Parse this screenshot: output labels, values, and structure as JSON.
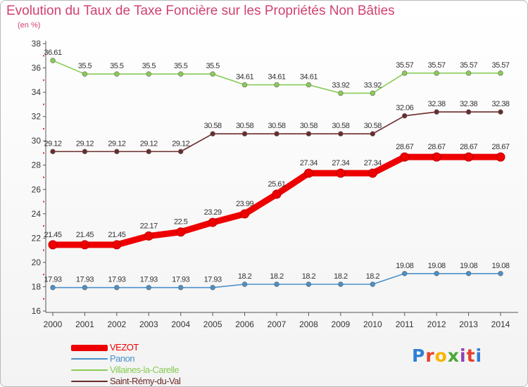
{
  "header": {
    "title": "Evolution du Taux de Taxe Foncière sur les Propriétés Non Bâties",
    "unit": "(en %)"
  },
  "logo": {
    "text": "Proxiti",
    "letters": [
      {
        "ch": "P",
        "color": "#2c7fd6"
      },
      {
        "ch": "r",
        "color": "#e8402a"
      },
      {
        "ch": "o",
        "color": "#f7b500"
      },
      {
        "ch": "x",
        "color": "#4aa833"
      },
      {
        "ch": "i",
        "color": "#8e3fb3"
      },
      {
        "ch": "t",
        "color": "#e8402a"
      },
      {
        "ch": "i",
        "color": "#2c7fd6"
      }
    ]
  },
  "chart_data": {
    "type": "line",
    "title": "Evolution du Taux de Taxe Foncière sur les Propriétés Non Bâties",
    "ylabel": "(en %)",
    "xlabel": "",
    "x": [
      "2000",
      "2001",
      "2002",
      "2003",
      "2004",
      "2005",
      "2006",
      "2007",
      "2008",
      "2009",
      "2010",
      "2011",
      "2012",
      "2013",
      "2014"
    ],
    "ylim": [
      16,
      38
    ],
    "yticks": [
      16,
      18,
      20,
      22,
      24,
      26,
      28,
      30,
      32,
      34,
      36,
      38
    ],
    "grid": false,
    "legend_position": "bottom-left",
    "series": [
      {
        "name": "Villaines-la-Carelle",
        "color": "#88cc55",
        "values": [
          36.61,
          35.5,
          35.5,
          35.5,
          35.5,
          35.5,
          34.61,
          34.61,
          34.61,
          33.92,
          33.92,
          35.57,
          35.57,
          35.57,
          35.57
        ],
        "labels": [
          "36.61",
          "35.5",
          "35.5",
          "35.5",
          "35.5",
          "35.5",
          "34.61",
          "34.61",
          "34.61",
          "33.92",
          "33.92",
          "35.57",
          "35.57",
          "35.57",
          "35.57"
        ]
      },
      {
        "name": "Saint-Rémy-du-Val",
        "color": "#6b2b2b",
        "values": [
          29.12,
          29.12,
          29.12,
          29.12,
          29.12,
          30.58,
          30.58,
          30.58,
          30.58,
          30.58,
          30.58,
          32.06,
          32.38,
          32.38,
          32.38
        ],
        "labels": [
          "29.12",
          "29.12",
          "29.12",
          "29.12",
          "29.12",
          "30.58",
          "30.58",
          "30.58",
          "30.58",
          "30.58",
          "30.58",
          "32.06",
          "32.38",
          "32.38",
          "32.38"
        ]
      },
      {
        "name": "VEZOT",
        "color": "#ee0000",
        "values": [
          21.45,
          21.45,
          21.45,
          22.17,
          22.5,
          23.29,
          23.99,
          25.61,
          27.34,
          27.34,
          27.34,
          28.67,
          28.67,
          28.67,
          28.67
        ],
        "labels": [
          "21.45",
          "21.45",
          "21.45",
          "22.17",
          "22.5",
          "23.29",
          "23.99",
          "25.61",
          "27.34",
          "27.34",
          "27.34",
          "28.67",
          "28.67",
          "28.67",
          "28.67"
        ]
      },
      {
        "name": "Panon",
        "color": "#4a90c8",
        "values": [
          17.93,
          17.93,
          17.93,
          17.93,
          17.93,
          17.93,
          18.2,
          18.2,
          18.2,
          18.2,
          18.2,
          19.08,
          19.08,
          19.08,
          19.08
        ],
        "labels": [
          "17.93",
          "17.93",
          "17.93",
          "17.93",
          "17.93",
          "17.93",
          "18.2",
          "18.2",
          "18.2",
          "18.2",
          "18.2",
          "19.08",
          "19.08",
          "19.08",
          "19.08"
        ]
      }
    ],
    "legend": [
      {
        "name": "VEZOT",
        "color": "#ee0000"
      },
      {
        "name": "Panon",
        "color": "#4a90c8"
      },
      {
        "name": "Villaines-la-Carelle",
        "color": "#88cc55"
      },
      {
        "name": "Saint-Rémy-du-Val",
        "color": "#6b2b2b"
      }
    ]
  }
}
